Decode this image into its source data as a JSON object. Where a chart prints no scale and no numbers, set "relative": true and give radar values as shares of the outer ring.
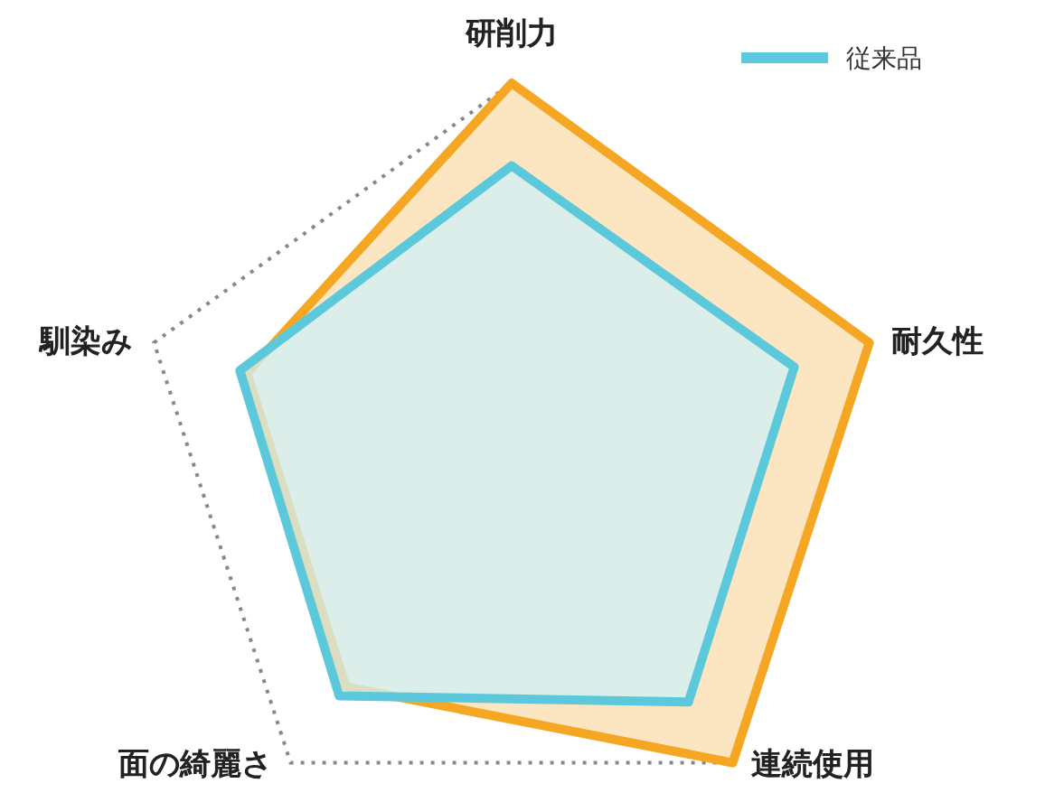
{
  "chart_data": {
    "type": "radar",
    "relative": true,
    "grid": true,
    "legend": "top right",
    "categories": [
      "研削力",
      "耐久性",
      "連続使用",
      "面の綺麗さ",
      "馴染み"
    ],
    "series": [
      {
        "name": "従来品",
        "color": "#5bc8dc",
        "values": [
          0.78,
          0.79,
          0.8,
          0.78,
          0.76
        ]
      },
      {
        "color": "#f5a623",
        "values": [
          1,
          1,
          1,
          0.75,
          0.74
        ]
      }
    ]
  }
}
